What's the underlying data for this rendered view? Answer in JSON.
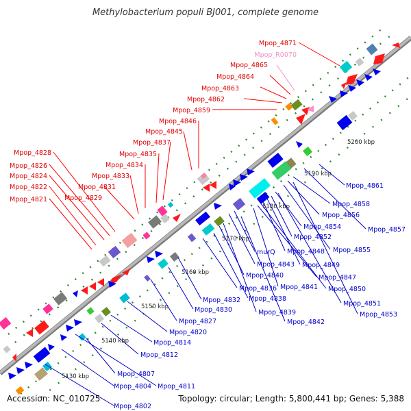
{
  "title": "Methylobacterium populi BJ001, complete genome",
  "footer": {
    "accession": "Accession: NC_010725",
    "summary": "Topology: circular; Length: 5,800,441 bp; Genes: 5,388"
  },
  "colors": {
    "backbone": "#a9a9a9",
    "upper_label": "#e00000",
    "rna_label": "#f291c2",
    "lower_label": "#0000cc",
    "dots": "#2e8b2e"
  },
  "upper_labels": [
    {
      "text": "Mpop_4871"
    },
    {
      "text": "Mpop_R0070"
    },
    {
      "text": "Mpop_4865"
    },
    {
      "text": "Mpop_4864"
    },
    {
      "text": "Mpop_4863"
    },
    {
      "text": "Mpop_4862"
    },
    {
      "text": "Mpop_4859"
    },
    {
      "text": "Mpop_4846"
    },
    {
      "text": "Mpop_4845"
    },
    {
      "text": "Mpop_4837"
    },
    {
      "text": "Mpop_4835"
    },
    {
      "text": "Mpop_4834"
    },
    {
      "text": "Mpop_4833"
    },
    {
      "text": "Mpop_4831"
    },
    {
      "text": "Mpop_4829"
    },
    {
      "text": "Mpop_4828"
    },
    {
      "text": "Mpop_4826"
    },
    {
      "text": "Mpop_4824"
    },
    {
      "text": "Mpop_4822"
    },
    {
      "text": "Mpop_4821"
    }
  ],
  "lower_labels": [
    {
      "text": "Mpop_4861"
    },
    {
      "text": "Mpop_4858"
    },
    {
      "text": "Mpop_4856"
    },
    {
      "text": "Mpop_4857"
    },
    {
      "text": "Mpop_4854"
    },
    {
      "text": "Mpop_4852"
    },
    {
      "text": "Mpop_4855"
    },
    {
      "text": "Mpop_4848"
    },
    {
      "text": "Mpop_4849"
    },
    {
      "text": "murQ"
    },
    {
      "text": "Mpop_4843"
    },
    {
      "text": "Mpop_4840"
    },
    {
      "text": "Mpop_4847"
    },
    {
      "text": "Mpop_4841"
    },
    {
      "text": "Mpop_4850"
    },
    {
      "text": "Mpop_4836"
    },
    {
      "text": "Mpop_4838"
    },
    {
      "text": "Mpop_4851"
    },
    {
      "text": "Mpop_4832"
    },
    {
      "text": "Mpop_4830"
    },
    {
      "text": "Mpop_4839"
    },
    {
      "text": "Mpop_4853"
    },
    {
      "text": "Mpop_4827"
    },
    {
      "text": "Mpop_4842"
    },
    {
      "text": "Mpop_4820"
    },
    {
      "text": "Mpop_4814"
    },
    {
      "text": "Mpop_4812"
    },
    {
      "text": "Mpop_4807"
    },
    {
      "text": "Mpop_4804"
    },
    {
      "text": "Mpop_4811"
    },
    {
      "text": "Mpop_4802"
    }
  ],
  "scale_ticks": [
    {
      "label": "5200 kbp"
    },
    {
      "label": "5190 kbp"
    },
    {
      "label": "5180 kbp"
    },
    {
      "label": "5170 kbp"
    },
    {
      "label": "5160 kbp"
    },
    {
      "label": "5150 kbp"
    },
    {
      "label": "5140 kbp"
    },
    {
      "label": "5130 kbp"
    }
  ]
}
